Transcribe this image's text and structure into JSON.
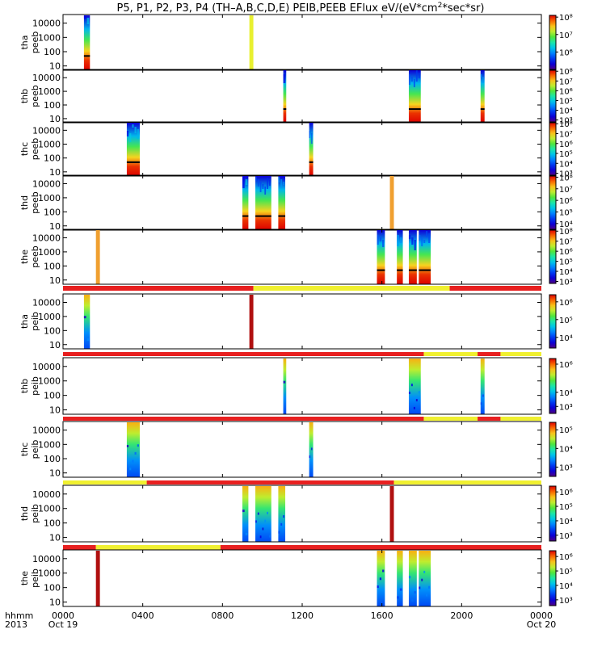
{
  "chart_data": {
    "type": "heatmap",
    "title_prefix": "P5, P1, P2, P3, P4 (TH–A,B,C,D,E) PEIB,PEEB EFlux eV/(eV*cm",
    "title_sup": "2",
    "title_suffix": "*sec*sr)",
    "x_ticks": [
      "0000",
      "0400",
      "0800",
      "1200",
      "1600",
      "2000",
      "0000"
    ],
    "x_tick_hours": [
      0,
      4,
      8,
      12,
      16,
      20,
      24
    ],
    "x_range_hours": [
      0,
      24
    ],
    "x_sublabels": [
      {
        "hour": 0,
        "text": "Oct 19"
      },
      {
        "hour": 24,
        "text": "Oct 20"
      }
    ],
    "corner_labels": [
      "hhmm",
      "2013"
    ],
    "y_ticks": [
      "10000",
      "1000",
      "100",
      "10"
    ],
    "y_tick_values": [
      10000,
      1000,
      100,
      10
    ],
    "y_range": [
      5,
      40000
    ],
    "y_scale": "log",
    "panels": [
      {
        "id": "tha-peeb",
        "label_top": "tha",
        "label_bottom": "peeb",
        "kind": "electron",
        "cbar_ticks": [
          "10⁸",
          "10⁷",
          "10⁶"
        ],
        "cbar_tick_values": [
          8,
          7,
          6
        ],
        "cbar_range": [
          5,
          8.1
        ],
        "intervals": [
          {
            "start": 1.05,
            "end": 1.35,
            "style": "spec"
          },
          {
            "start": 9.35,
            "end": 9.55,
            "style": "flat",
            "color": "#e8f030"
          }
        ]
      },
      {
        "id": "thb-peeb",
        "label_top": "thb",
        "label_bottom": "peeb",
        "kind": "electron",
        "cbar_ticks": [
          "10⁸",
          "10⁷",
          "10⁶",
          "10⁵",
          "10⁴",
          "10³"
        ],
        "cbar_tick_values": [
          8,
          7,
          6,
          5,
          4,
          3
        ],
        "cbar_range": [
          2.8,
          8.1
        ],
        "intervals": [
          {
            "start": 11.05,
            "end": 11.2,
            "style": "spec"
          },
          {
            "start": 17.35,
            "end": 17.95,
            "style": "spec"
          },
          {
            "start": 20.95,
            "end": 21.15,
            "style": "spec"
          }
        ]
      },
      {
        "id": "thc-peeb",
        "label_top": "thc",
        "label_bottom": "peeb",
        "kind": "electron",
        "cbar_ticks": [
          "10⁸",
          "10⁷",
          "10⁶",
          "10⁵",
          "10⁴",
          "10³"
        ],
        "cbar_tick_values": [
          8,
          7,
          6,
          5,
          4,
          3
        ],
        "cbar_range": [
          2.8,
          8.1
        ],
        "intervals": [
          {
            "start": 3.2,
            "end": 3.85,
            "style": "spec"
          },
          {
            "start": 12.35,
            "end": 12.55,
            "style": "spec"
          }
        ]
      },
      {
        "id": "thd-peeb",
        "label_top": "thd",
        "label_bottom": "peeb",
        "kind": "electron",
        "cbar_ticks": [
          "10⁸",
          "10⁷",
          "10⁶",
          "10⁵",
          "10⁴"
        ],
        "cbar_tick_values": [
          8,
          7,
          6,
          5,
          4
        ],
        "cbar_range": [
          3.5,
          8.1
        ],
        "intervals": [
          {
            "start": 9.0,
            "end": 9.3,
            "style": "spec"
          },
          {
            "start": 9.65,
            "end": 10.45,
            "style": "spec"
          },
          {
            "start": 10.8,
            "end": 11.15,
            "style": "spec"
          },
          {
            "start": 16.4,
            "end": 16.6,
            "style": "flat",
            "color": "#f0a030"
          }
        ]
      },
      {
        "id": "the-peeb",
        "label_top": "the",
        "label_bottom": "peeb",
        "kind": "electron",
        "cbar_ticks": [
          "10⁸",
          "10⁷",
          "10⁶",
          "10⁵",
          "10⁴",
          "10³"
        ],
        "cbar_tick_values": [
          8,
          7,
          6,
          5,
          4,
          3
        ],
        "cbar_range": [
          2.8,
          8.1
        ],
        "intervals": [
          {
            "start": 1.65,
            "end": 1.85,
            "style": "flat",
            "color": "#f0a030"
          },
          {
            "start": 15.75,
            "end": 16.15,
            "style": "spec"
          },
          {
            "start": 16.75,
            "end": 17.05,
            "style": "spec"
          },
          {
            "start": 17.35,
            "end": 17.75,
            "style": "spec"
          },
          {
            "start": 17.85,
            "end": 18.45,
            "style": "spec"
          }
        ]
      },
      {
        "id": "tha-peib",
        "label_top": "tha",
        "label_bottom": "peib",
        "kind": "ion",
        "cbar_ticks": [
          "10⁶",
          "10⁵",
          "10⁴"
        ],
        "cbar_tick_values": [
          6,
          5,
          4
        ],
        "cbar_range": [
          3.4,
          6.4
        ],
        "status_bar": [
          {
            "start": 0,
            "end": 9.55,
            "color": "#e82020"
          },
          {
            "start": 9.55,
            "end": 19.4,
            "color": "#f0f030"
          },
          {
            "start": 19.4,
            "end": 24,
            "color": "#e82020"
          }
        ],
        "intervals": [
          {
            "start": 1.05,
            "end": 1.35,
            "style": "spec"
          },
          {
            "start": 9.35,
            "end": 9.55,
            "style": "flat",
            "color": "#b01010"
          }
        ]
      },
      {
        "id": "thb-peib",
        "label_top": "thb",
        "label_bottom": "peib",
        "kind": "ion",
        "cbar_ticks": [
          "10⁶",
          "10⁴",
          "10³"
        ],
        "cbar_tick_values": [
          6,
          4,
          3
        ],
        "cbar_range": [
          2.5,
          6.4
        ],
        "status_bar": [
          {
            "start": 0,
            "end": 18.1,
            "color": "#e82020"
          },
          {
            "start": 18.1,
            "end": 20.8,
            "color": "#f0f030"
          },
          {
            "start": 20.8,
            "end": 21.95,
            "color": "#e82020"
          },
          {
            "start": 21.95,
            "end": 24,
            "color": "#f0f030"
          }
        ],
        "intervals": [
          {
            "start": 11.05,
            "end": 11.2,
            "style": "spec"
          },
          {
            "start": 17.35,
            "end": 17.95,
            "style": "spec"
          },
          {
            "start": 20.95,
            "end": 21.15,
            "style": "spec"
          }
        ]
      },
      {
        "id": "thc-peib",
        "label_top": "thc",
        "label_bottom": "peib",
        "kind": "ion",
        "cbar_ticks": [
          "10⁵",
          "10⁴",
          "10³"
        ],
        "cbar_tick_values": [
          5,
          4,
          3
        ],
        "cbar_range": [
          2.5,
          5.4
        ],
        "status_bar": [
          {
            "start": 0,
            "end": 18.1,
            "color": "#e82020"
          },
          {
            "start": 18.1,
            "end": 20.8,
            "color": "#f0f030"
          },
          {
            "start": 20.8,
            "end": 21.95,
            "color": "#e82020"
          },
          {
            "start": 21.95,
            "end": 24,
            "color": "#f0f030"
          }
        ],
        "intervals": [
          {
            "start": 3.2,
            "end": 3.85,
            "style": "spec"
          },
          {
            "start": 12.35,
            "end": 12.55,
            "style": "spec"
          }
        ]
      },
      {
        "id": "thd-peib",
        "label_top": "thd",
        "label_bottom": "peib",
        "kind": "ion",
        "cbar_ticks": [
          "10⁶",
          "10⁵",
          "10⁴",
          "10³"
        ],
        "cbar_tick_values": [
          6,
          5,
          4,
          3
        ],
        "cbar_range": [
          2.6,
          6.4
        ],
        "status_bar": [
          {
            "start": 0,
            "end": 4.2,
            "color": "#f0f030"
          },
          {
            "start": 4.2,
            "end": 16.6,
            "color": "#e82020"
          },
          {
            "start": 16.6,
            "end": 24,
            "color": "#f0f030"
          }
        ],
        "intervals": [
          {
            "start": 9.0,
            "end": 9.3,
            "style": "spec"
          },
          {
            "start": 9.65,
            "end": 10.45,
            "style": "spec"
          },
          {
            "start": 10.8,
            "end": 11.15,
            "style": "spec"
          },
          {
            "start": 16.4,
            "end": 16.6,
            "style": "flat",
            "color": "#b01010"
          }
        ]
      },
      {
        "id": "the-peib",
        "label_top": "the",
        "label_bottom": "peib",
        "kind": "ion",
        "cbar_ticks": [
          "10⁶",
          "10⁵",
          "10⁴",
          "10³"
        ],
        "cbar_tick_values": [
          6,
          5,
          4,
          3
        ],
        "cbar_range": [
          2.6,
          6.4
        ],
        "status_bar": [
          {
            "start": 0,
            "end": 1.65,
            "color": "#e82020"
          },
          {
            "start": 1.65,
            "end": 7.9,
            "color": "#f0f030"
          },
          {
            "start": 7.9,
            "end": 24,
            "color": "#e82020"
          }
        ],
        "intervals": [
          {
            "start": 1.65,
            "end": 1.85,
            "style": "flat",
            "color": "#b01010"
          },
          {
            "start": 15.75,
            "end": 16.15,
            "style": "spec"
          },
          {
            "start": 16.75,
            "end": 17.05,
            "style": "spec"
          },
          {
            "start": 17.35,
            "end": 17.75,
            "style": "spec"
          },
          {
            "start": 17.85,
            "end": 18.45,
            "style": "spec"
          }
        ]
      }
    ]
  }
}
